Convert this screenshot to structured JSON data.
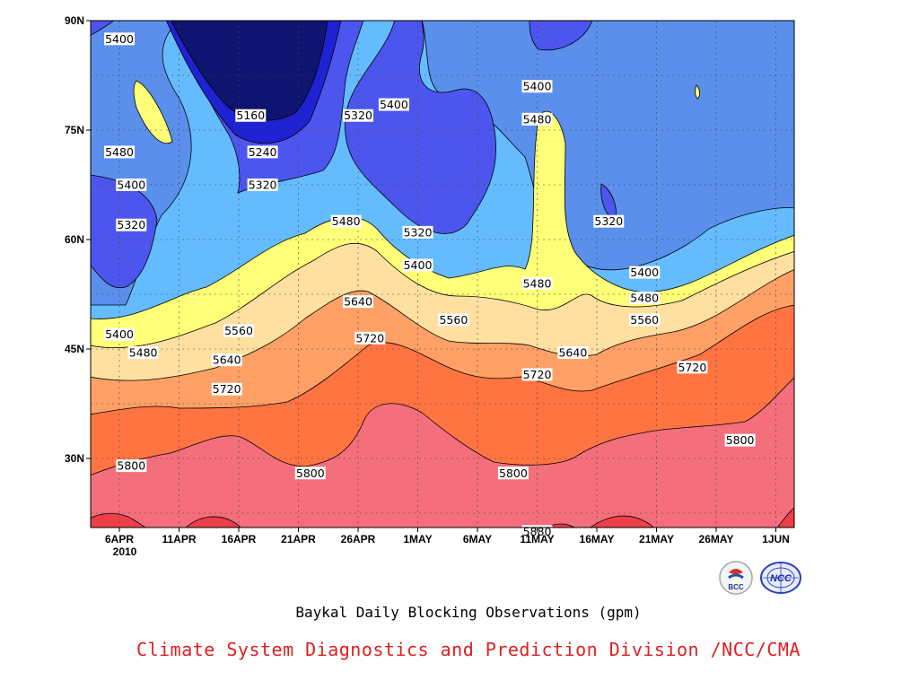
{
  "chart_data": {
    "type": "heatmap",
    "subtype": "filled contour (500hPa geopotential height, time-latitude section)",
    "title": "Baykal Daily Blocking Observations (gpm)",
    "credit": "Climate System Diagnostics and Prediction Division /NCC/CMA",
    "x_tick_labels": [
      "6APR",
      "11APR",
      "16APR",
      "21APR",
      "26APR",
      "1MAY",
      "6MAY",
      "11MAY",
      "16MAY",
      "21MAY",
      "26MAY",
      "1JUN"
    ],
    "x_year_label": "2010",
    "y_tick_labels": [
      "30N",
      "45N",
      "60N",
      "75N",
      "90N"
    ],
    "y_ticks": [
      30,
      45,
      60,
      75,
      90
    ],
    "ylim": [
      20,
      90
    ],
    "grid": true,
    "contour_levels": [
      5160,
      5240,
      5320,
      5400,
      5480,
      5560,
      5640,
      5720,
      5800,
      5880
    ],
    "fill_colors": [
      "#0e1470",
      "#1e22d2",
      "#4c56ee",
      "#5b8fec",
      "#64bcff",
      "#ffff78",
      "#ffe0a0",
      "#ffa066",
      "#ff7441",
      "#f46e7c",
      "#ec3f48"
    ],
    "contour_labels": [
      {
        "value": 5400,
        "date": "6APR",
        "lat": 87.5
      },
      {
        "value": 5480,
        "date": "6APR",
        "lat": 72
      },
      {
        "value": 5400,
        "date": "7APR",
        "lat": 67.5
      },
      {
        "value": 5320,
        "date": "7APR",
        "lat": 62
      },
      {
        "value": 5400,
        "date": "6APR",
        "lat": 47
      },
      {
        "value": 5480,
        "date": "8APR",
        "lat": 44.5
      },
      {
        "value": 5800,
        "date": "7APR",
        "lat": 29
      },
      {
        "value": 5160,
        "date": "17APR",
        "lat": 77
      },
      {
        "value": 5240,
        "date": "18APR",
        "lat": 72
      },
      {
        "value": 5320,
        "date": "18APR",
        "lat": 67.5
      },
      {
        "value": 5560,
        "date": "16APR",
        "lat": 47.5
      },
      {
        "value": 5640,
        "date": "15APR",
        "lat": 43.5
      },
      {
        "value": 5720,
        "date": "15APR",
        "lat": 39.5
      },
      {
        "value": 5320,
        "date": "26APR",
        "lat": 77
      },
      {
        "value": 5480,
        "date": "25APR",
        "lat": 62.5
      },
      {
        "value": 5640,
        "date": "26APR",
        "lat": 51.5
      },
      {
        "value": 5720,
        "date": "27APR",
        "lat": 46.5
      },
      {
        "value": 5800,
        "date": "22APR",
        "lat": 28
      },
      {
        "value": 5400,
        "date": "29APR",
        "lat": 78.5
      },
      {
        "value": 5320,
        "date": "1MAY",
        "lat": 61
      },
      {
        "value": 5400,
        "date": "1MAY",
        "lat": 56.5
      },
      {
        "value": 5560,
        "date": "4MAY",
        "lat": 49
      },
      {
        "value": 5400,
        "date": "11MAY",
        "lat": 81
      },
      {
        "value": 5480,
        "date": "11MAY",
        "lat": 76.5
      },
      {
        "value": 5480,
        "date": "11MAY",
        "lat": 54
      },
      {
        "value": 5720,
        "date": "11MAY",
        "lat": 41.5
      },
      {
        "value": 5800,
        "date": "9MAY",
        "lat": 28
      },
      {
        "value": 5880,
        "date": "11MAY",
        "lat": 20
      },
      {
        "value": 5640,
        "date": "14MAY",
        "lat": 44.5
      },
      {
        "value": 5320,
        "date": "17MAY",
        "lat": 62.5
      },
      {
        "value": 5400,
        "date": "20MAY",
        "lat": 55.5
      },
      {
        "value": 5480,
        "date": "20MAY",
        "lat": 52
      },
      {
        "value": 5560,
        "date": "20MAY",
        "lat": 49
      },
      {
        "value": 5720,
        "date": "24MAY",
        "lat": 42.5
      },
      {
        "value": 5800,
        "date": "28MAY",
        "lat": 32.5
      }
    ]
  },
  "logos": [
    {
      "name": "bcc-logo",
      "text": "BCC"
    },
    {
      "name": "ncc-logo",
      "text": "NCC"
    }
  ]
}
